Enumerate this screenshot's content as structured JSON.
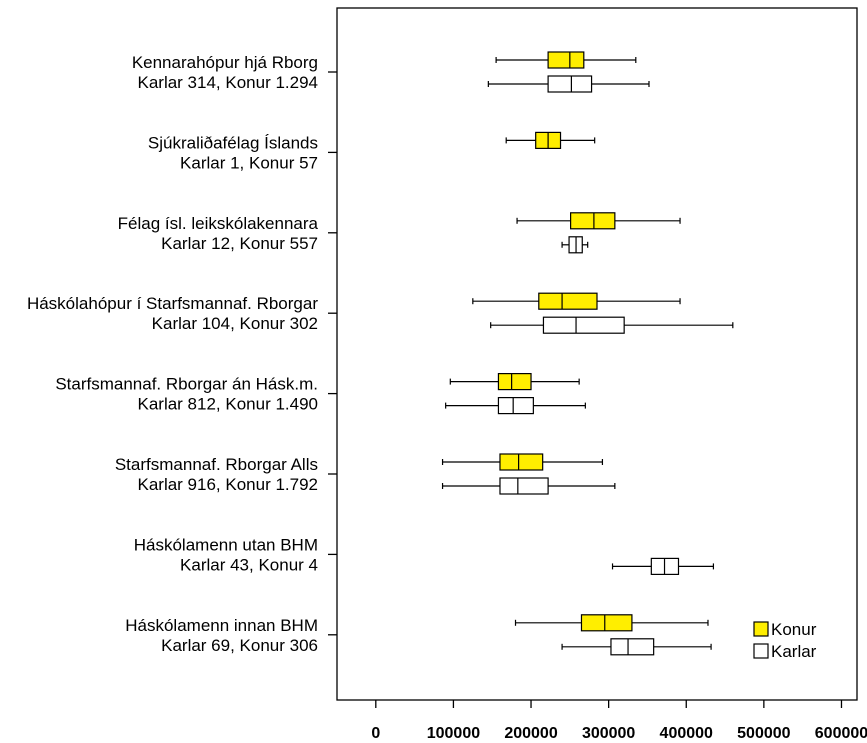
{
  "colors": {
    "konur": "#ffee00",
    "karlar": "#ffffff",
    "stroke": "#000000"
  },
  "legend": [
    {
      "label": "Konur",
      "color": "#ffee00"
    },
    {
      "label": "Karlar",
      "color": "#ffffff"
    }
  ],
  "chart_data": {
    "type": "boxplot",
    "xlim": [
      -50000,
      620000
    ],
    "xticks": [
      0,
      100000,
      200000,
      300000,
      400000,
      500000,
      600000
    ],
    "tick_labels": [
      "0",
      "100000",
      "200000",
      "300000",
      "400000",
      "500000",
      "600000"
    ],
    "legend_position": "bottom-right",
    "grid": false,
    "groups": [
      {
        "label1": "Kennarahópur hjá Rborg",
        "label2": "Karlar 314, Konur 1.294",
        "konur": {
          "min": 155000,
          "q1": 222000,
          "median": 250000,
          "q3": 268000,
          "max": 335000
        },
        "karlar": {
          "min": 145000,
          "q1": 222000,
          "median": 252000,
          "q3": 278000,
          "max": 352000
        }
      },
      {
        "label1": "Sjúkraliðafélag Íslands",
        "label2": "Karlar 1, Konur 57",
        "konur": {
          "min": 168000,
          "q1": 206000,
          "median": 222000,
          "q3": 238000,
          "max": 282000
        },
        "karlar": null
      },
      {
        "label1": "Félag ísl. leikskólakennara",
        "label2": "Karlar 12, Konur 557",
        "konur": {
          "min": 182000,
          "q1": 251000,
          "median": 281000,
          "q3": 308000,
          "max": 392000
        },
        "karlar": {
          "min": 240000,
          "q1": 249000,
          "median": 258000,
          "q3": 266000,
          "max": 273000
        }
      },
      {
        "label1": "Háskólahópur í Starfsmannaf. Rborgar",
        "label2": "Karlar 104, Konur 302",
        "konur": {
          "min": 125000,
          "q1": 210000,
          "median": 240000,
          "q3": 285000,
          "max": 392000
        },
        "karlar": {
          "min": 148000,
          "q1": 216000,
          "median": 258000,
          "q3": 320000,
          "max": 460000
        }
      },
      {
        "label1": "Starfsmannaf. Rborgar án Hásk.m.",
        "label2": "Karlar 812, Konur 1.490",
        "konur": {
          "min": 96000,
          "q1": 158000,
          "median": 175000,
          "q3": 200000,
          "max": 262000
        },
        "karlar": {
          "min": 90000,
          "q1": 158000,
          "median": 177000,
          "q3": 203000,
          "max": 270000
        }
      },
      {
        "label1": "Starfsmannaf. Rborgar Alls",
        "label2": "Karlar 916, Konur 1.792",
        "konur": {
          "min": 86000,
          "q1": 160000,
          "median": 184000,
          "q3": 215000,
          "max": 292000
        },
        "karlar": {
          "min": 86000,
          "q1": 160000,
          "median": 183000,
          "q3": 222000,
          "max": 308000
        }
      },
      {
        "label1": "Háskólamenn utan BHM",
        "label2": "Karlar 43, Konur 4",
        "konur": null,
        "karlar": {
          "min": 305000,
          "q1": 355000,
          "median": 372000,
          "q3": 390000,
          "max": 435000
        }
      },
      {
        "label1": "Háskólamenn innan BHM",
        "label2": "Karlar 69, Konur 306",
        "konur": {
          "min": 180000,
          "q1": 265000,
          "median": 295000,
          "q3": 330000,
          "max": 428000
        },
        "karlar": {
          "min": 240000,
          "q1": 303000,
          "median": 325000,
          "q3": 358000,
          "max": 432000
        }
      }
    ]
  }
}
